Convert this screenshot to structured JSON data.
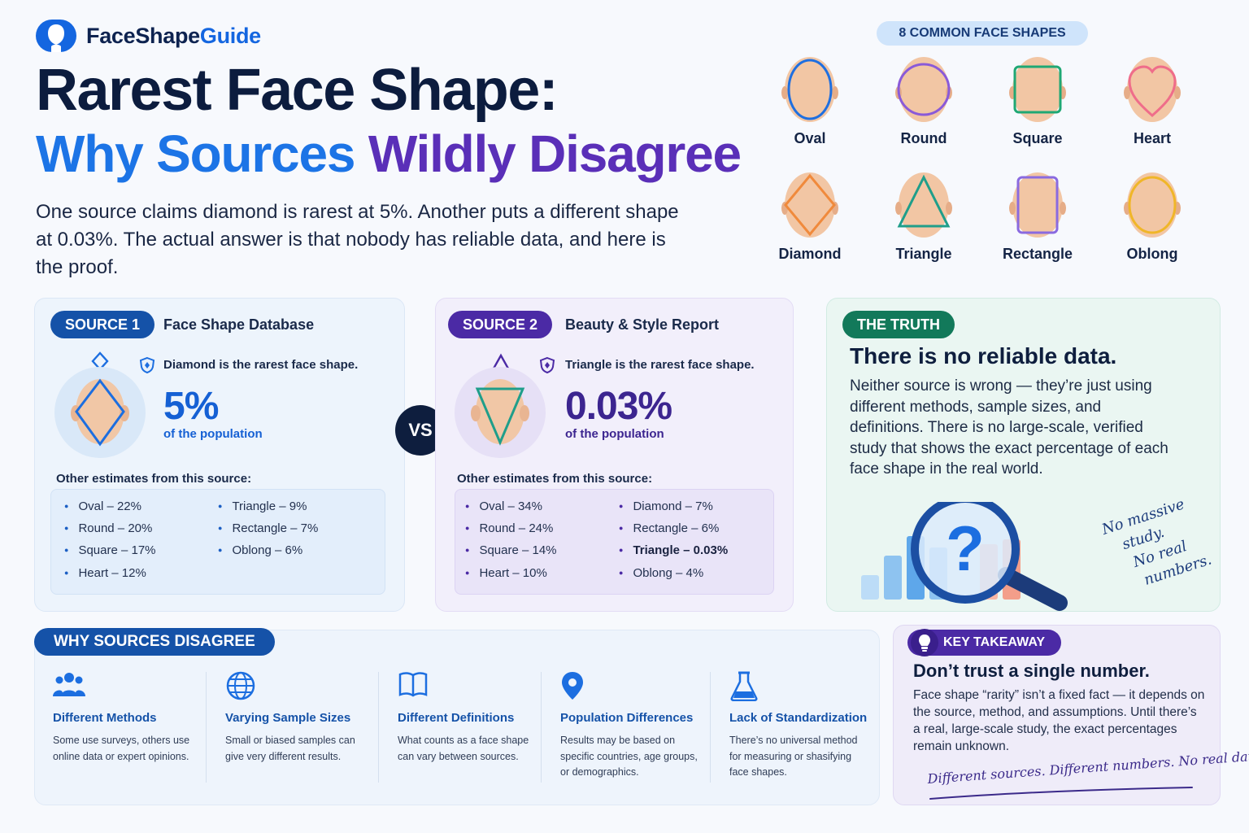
{
  "brand": {
    "name_a": "FaceShape",
    "name_b": "Guide"
  },
  "hero": {
    "title_line1": "Rarest Face Shape:",
    "title_line2_a": "Why Sources",
    "title_line2_b": "Wildly Disagree",
    "intro": "One source claims diamond is rarest at 5%. Another puts a different shape at 0.03%. The actual answer is that nobody has reliable data, and here is the proof."
  },
  "shapes": {
    "pill": "8 COMMON FACE SHAPES",
    "items": [
      {
        "name": "Oval",
        "color": "#1f6fe0"
      },
      {
        "name": "Round",
        "color": "#8a5ad8"
      },
      {
        "name": "Square",
        "color": "#1fa874"
      },
      {
        "name": "Heart",
        "color": "#ef6d8a"
      },
      {
        "name": "Diamond",
        "color": "#f08a3c"
      },
      {
        "name": "Triangle",
        "color": "#1f9e8a"
      },
      {
        "name": "Rectangle",
        "color": "#8a6ae0"
      },
      {
        "name": "Oblong",
        "color": "#f0b628"
      }
    ]
  },
  "source1": {
    "pill": "SOURCE 1",
    "name": "Face Shape Database",
    "claim": "Diamond is the rarest face shape.",
    "pct": "5%",
    "pct_sub": "of the population",
    "other_title": "Other estimates from this source:",
    "col1": [
      "Oval – 22%",
      "Round – 20%",
      "Square – 17%",
      "Heart – 12%"
    ],
    "col2": [
      "Triangle – 9%",
      "Rectangle – 7%",
      "Oblong – 6%"
    ]
  },
  "vs": "VS",
  "source2": {
    "pill": "SOURCE 2",
    "name": "Beauty & Style Report",
    "claim": "Triangle is the rarest face shape.",
    "pct": "0.03%",
    "pct_sub": "of the population",
    "other_title": "Other estimates from this source:",
    "col1": [
      "Oval – 34%",
      "Round – 24%",
      "Square – 14%",
      "Heart – 10%"
    ],
    "col2": [
      "Diamond – 7%",
      "Rectangle – 6%",
      "Triangle – 0.03%",
      "Oblong – 4%"
    ]
  },
  "truth": {
    "pill": "THE TRUTH",
    "heading": "There is no reliable data.",
    "body": "Neither source is wrong — they’re just using different methods, sample sizes, and definitions. There is no large-scale, verified study that shows the exact percentage of each face shape in the real world.",
    "note_l1": "No massive",
    "note_l2": "study.",
    "note_l3": "No real",
    "note_l4": "numbers."
  },
  "why": {
    "pill": "WHY SOURCES DISAGREE",
    "items": [
      {
        "icon": "people-icon",
        "title": "Different Methods",
        "desc": "Some use surveys, others use online data or expert opinions."
      },
      {
        "icon": "globe-icon",
        "title": "Varying Sample Sizes",
        "desc": "Small or biased samples can give very different results."
      },
      {
        "icon": "book-icon",
        "title": "Different Definitions",
        "desc": "What counts as a face shape can vary between sources."
      },
      {
        "icon": "location-pin-icon",
        "title": "Population Differences",
        "desc": "Results may be based on specific countries, age groups, or demographics."
      },
      {
        "icon": "flask-icon",
        "title": "Lack of Standardization",
        "desc": "There’s no universal method for measuring or shasifying face shapes."
      }
    ]
  },
  "takeaway": {
    "pill": "KEY TAKEAWAY",
    "heading": "Don’t trust a single number.",
    "body": "Face shape “rarity” isn’t a fixed fact — it depends on the source, method, and assumptions. Until there’s a real, large-scale study, the exact percentages remain unknown.",
    "note": "Different sources. Different numbers. No real data."
  }
}
